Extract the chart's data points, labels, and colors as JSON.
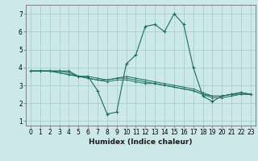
{
  "xlabel": "Humidex (Indice chaleur)",
  "background_color": "#cce8e8",
  "grid_color": "#aacece",
  "line_color": "#1a6e5e",
  "x_values": [
    0,
    1,
    2,
    3,
    4,
    5,
    6,
    7,
    8,
    9,
    10,
    11,
    12,
    13,
    14,
    15,
    16,
    17,
    18,
    19,
    20,
    21,
    22,
    23
  ],
  "series": [
    [
      3.8,
      3.8,
      3.8,
      3.8,
      3.8,
      3.5,
      3.5,
      2.7,
      1.4,
      1.5,
      4.2,
      4.7,
      6.3,
      6.4,
      6.0,
      7.0,
      6.4,
      4.0,
      2.4,
      2.1,
      2.4,
      2.5,
      2.6,
      2.5
    ],
    [
      3.8,
      3.8,
      3.8,
      3.8,
      3.7,
      3.5,
      3.4,
      3.3,
      3.3,
      3.4,
      3.4,
      3.3,
      3.2,
      3.1,
      3.0,
      2.9,
      2.8,
      2.7,
      2.5,
      2.4,
      2.4,
      2.5,
      2.5,
      2.5
    ],
    [
      3.8,
      3.8,
      3.8,
      3.7,
      3.6,
      3.5,
      3.4,
      3.3,
      3.2,
      3.3,
      3.3,
      3.2,
      3.1,
      3.1,
      3.0,
      2.9,
      2.8,
      2.7,
      2.5,
      2.3,
      2.3,
      2.4,
      2.5,
      2.5
    ],
    [
      3.8,
      3.8,
      3.8,
      3.7,
      3.6,
      3.5,
      3.5,
      3.4,
      3.3,
      3.4,
      3.5,
      3.4,
      3.3,
      3.2,
      3.1,
      3.0,
      2.9,
      2.8,
      2.6,
      2.4,
      2.4,
      2.5,
      2.6,
      2.5
    ]
  ],
  "ylim": [
    0.75,
    7.5
  ],
  "xlim": [
    -0.5,
    23.5
  ],
  "yticks": [
    1,
    2,
    3,
    4,
    5,
    6,
    7
  ],
  "xticks": [
    0,
    1,
    2,
    3,
    4,
    5,
    6,
    7,
    8,
    9,
    10,
    11,
    12,
    13,
    14,
    15,
    16,
    17,
    18,
    19,
    20,
    21,
    22,
    23
  ],
  "tick_fontsize": 5.5,
  "xlabel_fontsize": 6.5
}
